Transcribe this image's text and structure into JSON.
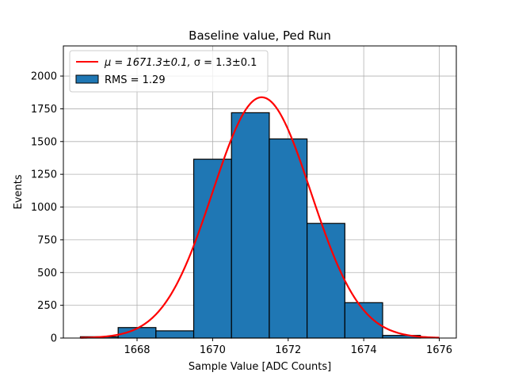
{
  "chart_data": {
    "type": "bar",
    "title": "Baseline value, Ped Run",
    "xlabel": "Sample Value [ADC Counts]",
    "ylabel": "Events",
    "xlim": [
      1666.05,
      1676.45
    ],
    "ylim": [
      0,
      2230
    ],
    "grid": true,
    "x_ticks": [
      1668,
      1670,
      1672,
      1674,
      1676
    ],
    "y_ticks": [
      0,
      250,
      500,
      750,
      1000,
      1250,
      1500,
      1750,
      2000
    ],
    "bins": [
      {
        "left": 1666.5,
        "right": 1667.5,
        "value": 10
      },
      {
        "left": 1667.5,
        "right": 1668.5,
        "value": 80
      },
      {
        "left": 1668.5,
        "right": 1669.5,
        "value": 55
      },
      {
        "left": 1669.5,
        "right": 1670.5,
        "value": 1365
      },
      {
        "left": 1670.5,
        "right": 1671.5,
        "value": 1720
      },
      {
        "left": 1671.5,
        "right": 1672.5,
        "value": 1520
      },
      {
        "left": 1672.5,
        "right": 1673.5,
        "value": 875
      },
      {
        "left": 1673.5,
        "right": 1674.5,
        "value": 270
      },
      {
        "left": 1674.5,
        "right": 1675.5,
        "value": 20
      }
    ],
    "fit": {
      "mu": 1671.3,
      "sigma": 1.3,
      "amplitude": 1838,
      "x_range": [
        1666.5,
        1676.0
      ],
      "color": "#ff0000"
    },
    "bar_color": "#1f77b4",
    "legend": {
      "placement": "top-left",
      "entries": [
        {
          "label_mu": "μ = 1671.3±0.1, ",
          "label_sigma": "σ = 1.3±0.1",
          "kind": "line"
        },
        {
          "label": "RMS = 1.29",
          "kind": "patch"
        }
      ]
    }
  }
}
